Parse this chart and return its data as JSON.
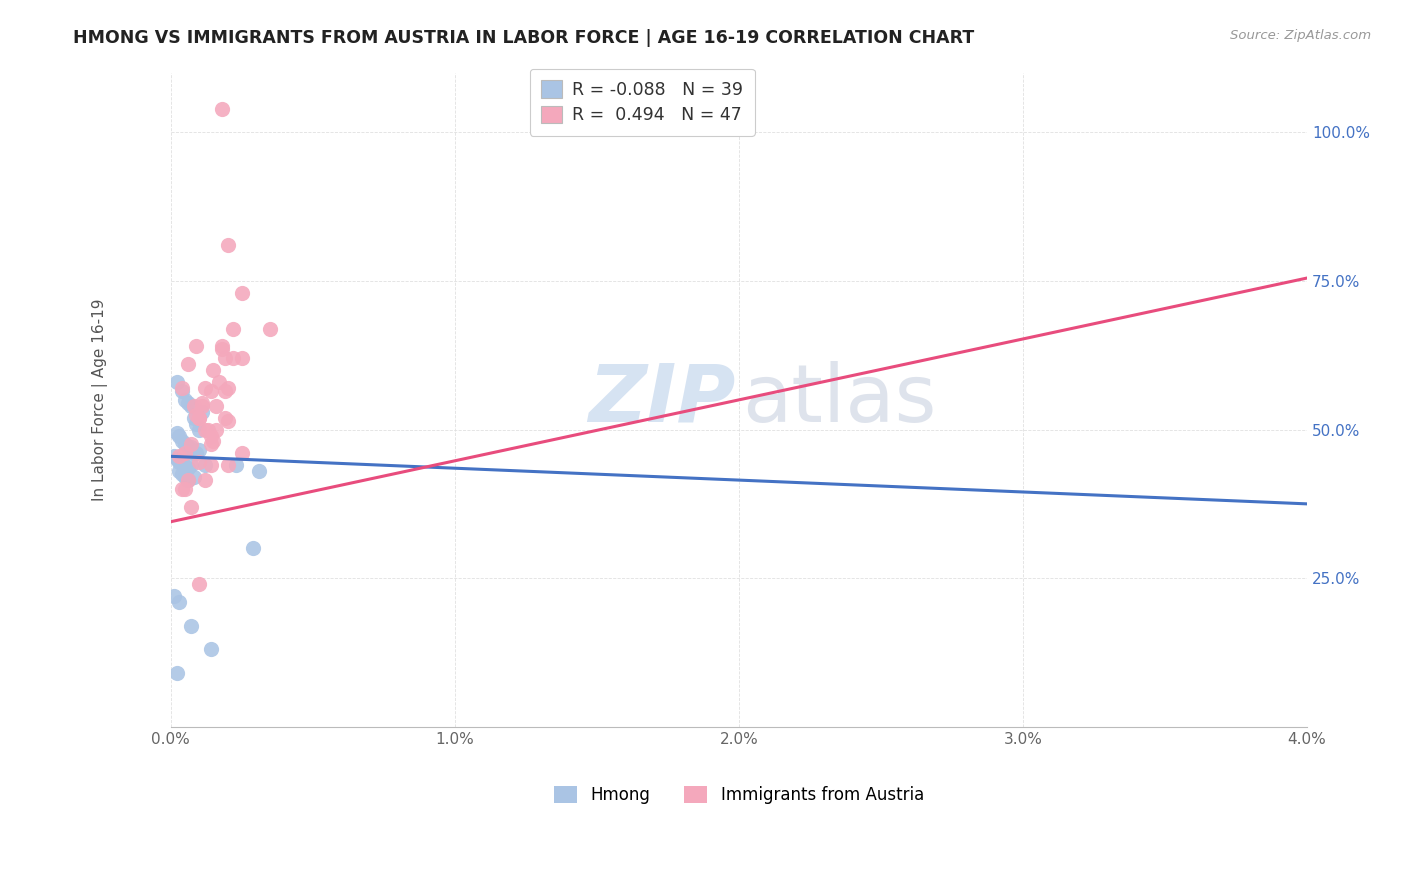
{
  "title": "HMONG VS IMMIGRANTS FROM AUSTRIA IN LABOR FORCE | AGE 16-19 CORRELATION CHART",
  "source_text": "Source: ZipAtlas.com",
  "ylabel": "In Labor Force | Age 16-19",
  "xlim": [
    0.0,
    0.04
  ],
  "ylim": [
    0.0,
    1.1
  ],
  "xlabel_tick_vals": [
    0.0,
    0.01,
    0.02,
    0.03,
    0.04
  ],
  "xlabel_tick_labels": [
    "0.0%",
    "1.0%",
    "2.0%",
    "3.0%",
    "4.0%"
  ],
  "ylabel_tick_vals": [
    0.25,
    0.5,
    0.75,
    1.0
  ],
  "ylabel_tick_labels": [
    "25.0%",
    "50.0%",
    "75.0%",
    "100.0%"
  ],
  "r_hmong": -0.088,
  "n_hmong": 39,
  "r_austria": 0.494,
  "n_austria": 47,
  "hmong_color": "#aac4e4",
  "austria_color": "#f4a8bc",
  "hmong_line_color": "#4472c4",
  "austria_line_color": "#e84c7d",
  "hmong_line_y0": 0.455,
  "hmong_line_y1": 0.375,
  "austria_line_y0": 0.345,
  "austria_line_y1": 0.755,
  "hmong_x": [
    0.0002,
    0.0004,
    0.0005,
    0.0006,
    0.0007,
    0.0008,
    0.0009,
    0.001,
    0.0011,
    0.0002,
    0.0003,
    0.0004,
    0.0005,
    0.0006,
    0.0007,
    0.0008,
    0.0009,
    0.001,
    0.0001,
    0.0002,
    0.0003,
    0.0004,
    0.0005,
    0.0006,
    0.0007,
    0.0008,
    0.0003,
    0.0004,
    0.0005,
    0.0006,
    0.0001,
    0.0003,
    0.0007,
    0.0014,
    0.0029,
    0.0031,
    0.0012,
    0.0023,
    0.0002
  ],
  "hmong_y": [
    0.58,
    0.565,
    0.55,
    0.545,
    0.54,
    0.52,
    0.51,
    0.5,
    0.53,
    0.495,
    0.49,
    0.48,
    0.475,
    0.47,
    0.47,
    0.46,
    0.46,
    0.465,
    0.455,
    0.45,
    0.445,
    0.445,
    0.435,
    0.435,
    0.44,
    0.42,
    0.43,
    0.425,
    0.42,
    0.415,
    0.22,
    0.21,
    0.17,
    0.13,
    0.3,
    0.43,
    0.44,
    0.44,
    0.09
  ],
  "austria_x": [
    0.0004,
    0.0006,
    0.0009,
    0.001,
    0.0011,
    0.0012,
    0.0014,
    0.0015,
    0.0016,
    0.0008,
    0.001,
    0.0012,
    0.0014,
    0.0016,
    0.0018,
    0.002,
    0.0003,
    0.0005,
    0.0007,
    0.0009,
    0.0011,
    0.0013,
    0.0017,
    0.0019,
    0.0022,
    0.0025,
    0.002,
    0.0015,
    0.001,
    0.0006,
    0.0004,
    0.0018,
    0.002,
    0.0025,
    0.0019,
    0.0014,
    0.001,
    0.0007,
    0.0005,
    0.0018,
    0.0022,
    0.0019,
    0.0012,
    0.0014,
    0.002,
    0.0025,
    0.0035
  ],
  "austria_y": [
    0.57,
    0.61,
    0.64,
    0.52,
    0.54,
    0.57,
    0.475,
    0.48,
    0.5,
    0.54,
    0.52,
    0.5,
    0.49,
    0.54,
    0.635,
    0.57,
    0.455,
    0.46,
    0.475,
    0.525,
    0.545,
    0.5,
    0.58,
    0.52,
    0.67,
    0.73,
    0.81,
    0.6,
    0.445,
    0.415,
    0.4,
    0.64,
    0.44,
    0.46,
    0.62,
    0.565,
    0.24,
    0.37,
    0.4,
    1.04,
    0.62,
    0.565,
    0.415,
    0.44,
    0.515,
    0.62,
    0.67
  ]
}
